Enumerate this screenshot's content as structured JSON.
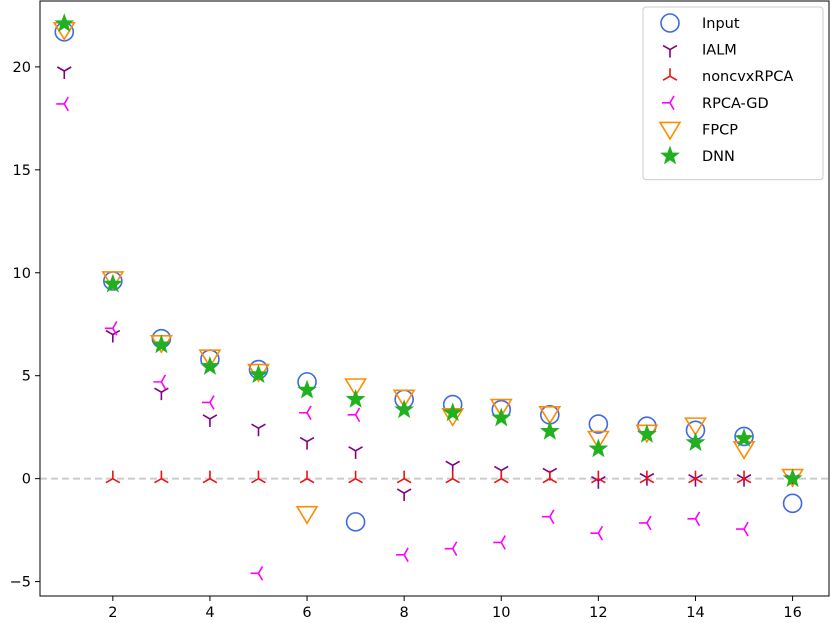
{
  "chart_data": {
    "type": "scatter",
    "title": "",
    "xlabel": "",
    "ylabel": "",
    "xlim": [
      0.5,
      16.75
    ],
    "ylim": [
      -5.7,
      23.2
    ],
    "grid": false,
    "legend_position": "top-right",
    "reference_line": {
      "y": 0,
      "style": "dashed",
      "color": "#cccccc"
    },
    "x_ticks": [
      2,
      4,
      6,
      8,
      10,
      12,
      14,
      16
    ],
    "y_ticks": [
      -5,
      0,
      5,
      10,
      15,
      20
    ],
    "x_tick_labels": [
      "2",
      "4",
      "6",
      "8",
      "10",
      "12",
      "14",
      "16"
    ],
    "y_tick_labels": [
      "−5",
      "0",
      "5",
      "10",
      "15",
      "20"
    ],
    "x": [
      1,
      2,
      3,
      4,
      5,
      6,
      7,
      8,
      9,
      10,
      11,
      12,
      13,
      14,
      15,
      16
    ],
    "series": [
      {
        "name": "Input",
        "marker": "circle-open",
        "color": "#4169e1",
        "values": [
          21.7,
          9.6,
          6.8,
          5.8,
          5.3,
          4.7,
          -2.1,
          3.85,
          3.6,
          3.35,
          3.1,
          2.65,
          2.55,
          2.35,
          2.05,
          -1.2
        ]
      },
      {
        "name": "IALM",
        "marker": "tri-down",
        "color": "#800080",
        "values": [
          19.8,
          7.0,
          4.2,
          2.9,
          2.45,
          1.8,
          1.35,
          -0.7,
          0.65,
          0.4,
          0.3,
          -0.1,
          0.05,
          0.0,
          0.0,
          0.0
        ]
      },
      {
        "name": "noncvxRPCA",
        "marker": "tri-up",
        "color": "#ee1111",
        "values": [
          null,
          0.0,
          0.0,
          0.0,
          0.0,
          0.0,
          0.0,
          0.0,
          0.0,
          0.0,
          0.0,
          0.0,
          0.0,
          0.0,
          0.0,
          null
        ]
      },
      {
        "name": "RPCA-GD",
        "marker": "tri-left",
        "color": "#ff00ff",
        "values": [
          18.2,
          7.3,
          4.7,
          3.7,
          -4.6,
          3.2,
          3.1,
          -3.7,
          -3.4,
          -3.1,
          -1.85,
          -2.65,
          -2.15,
          -1.95,
          -2.45,
          null
        ]
      },
      {
        "name": "FPCP",
        "marker": "triangle-down-open",
        "color": "#ff8c00",
        "values": [
          21.8,
          9.7,
          6.6,
          5.9,
          5.2,
          -1.7,
          4.5,
          3.95,
          3.05,
          3.5,
          3.15,
          1.95,
          2.25,
          2.6,
          1.45,
          0.1
        ]
      },
      {
        "name": "DNN",
        "marker": "star",
        "color": "#20b020",
        "values": [
          22.1,
          9.45,
          6.5,
          5.45,
          5.05,
          4.3,
          3.85,
          3.35,
          3.2,
          2.95,
          2.3,
          1.45,
          2.15,
          1.75,
          1.95,
          0.0
        ]
      }
    ]
  }
}
